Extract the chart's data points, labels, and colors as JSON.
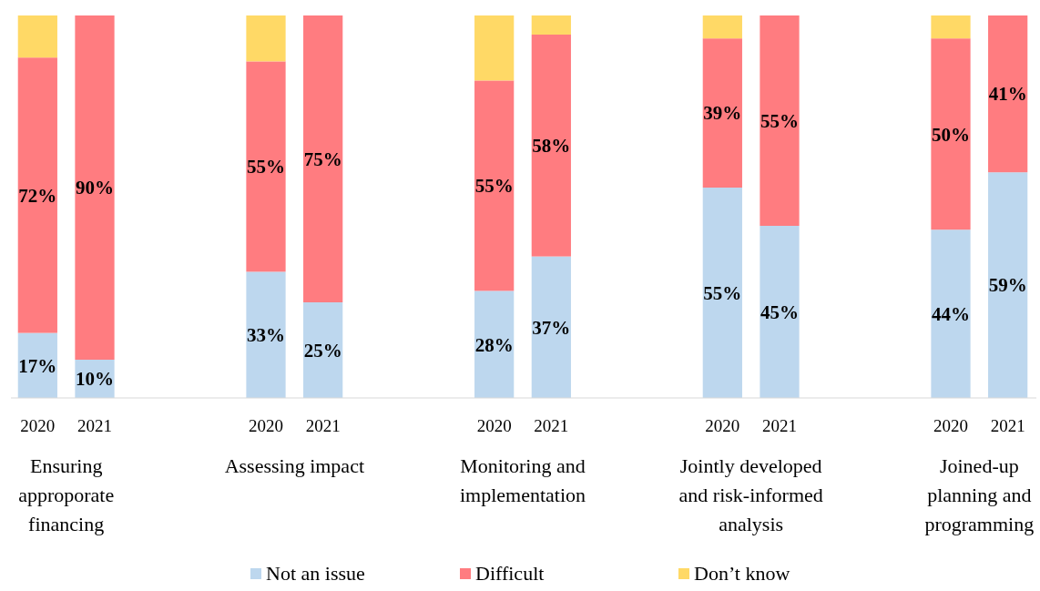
{
  "chart_data": {
    "type": "bar",
    "stacked": true,
    "categories": [
      "2020",
      "2021",
      null,
      null,
      "2020",
      "2021",
      null,
      null,
      "2020",
      "2021",
      null,
      null,
      "2020",
      "2021",
      null,
      null,
      "2020",
      "2021"
    ],
    "series": [
      {
        "name": "Not an issue",
        "color": "#bdd7ee",
        "values": [
          17,
          10,
          null,
          null,
          33,
          25,
          null,
          null,
          28,
          37,
          null,
          null,
          55,
          45,
          null,
          null,
          44,
          59
        ],
        "value_labels": [
          "17%",
          "10%",
          null,
          null,
          "33%",
          "25%",
          null,
          null,
          "28%",
          "37%",
          null,
          null,
          "55%",
          "45%",
          null,
          null,
          "44%",
          "59%"
        ]
      },
      {
        "name": "Difficult",
        "color": "#ff7c80",
        "values": [
          72,
          90,
          null,
          null,
          55,
          75,
          null,
          null,
          55,
          58,
          null,
          null,
          39,
          55,
          null,
          null,
          50,
          41
        ],
        "value_labels": [
          "72%",
          "90%",
          null,
          null,
          "55%",
          "75%",
          null,
          null,
          "55%",
          "58%",
          null,
          null,
          "39%",
          "55%",
          null,
          null,
          "50%",
          "41%"
        ]
      },
      {
        "name": "Don’t know",
        "color": "#ffd966",
        "values": [
          11,
          0,
          null,
          null,
          12,
          0,
          null,
          null,
          17,
          5,
          null,
          null,
          6,
          0,
          null,
          null,
          6,
          0
        ]
      }
    ],
    "annotations": [
      "Ensuring approporate financing",
      "Assessing impact",
      "Monitoring and implementation",
      "Jointly developed and risk-informed analysis",
      "Joined-up planning and programming"
    ],
    "legend": "bottom"
  }
}
